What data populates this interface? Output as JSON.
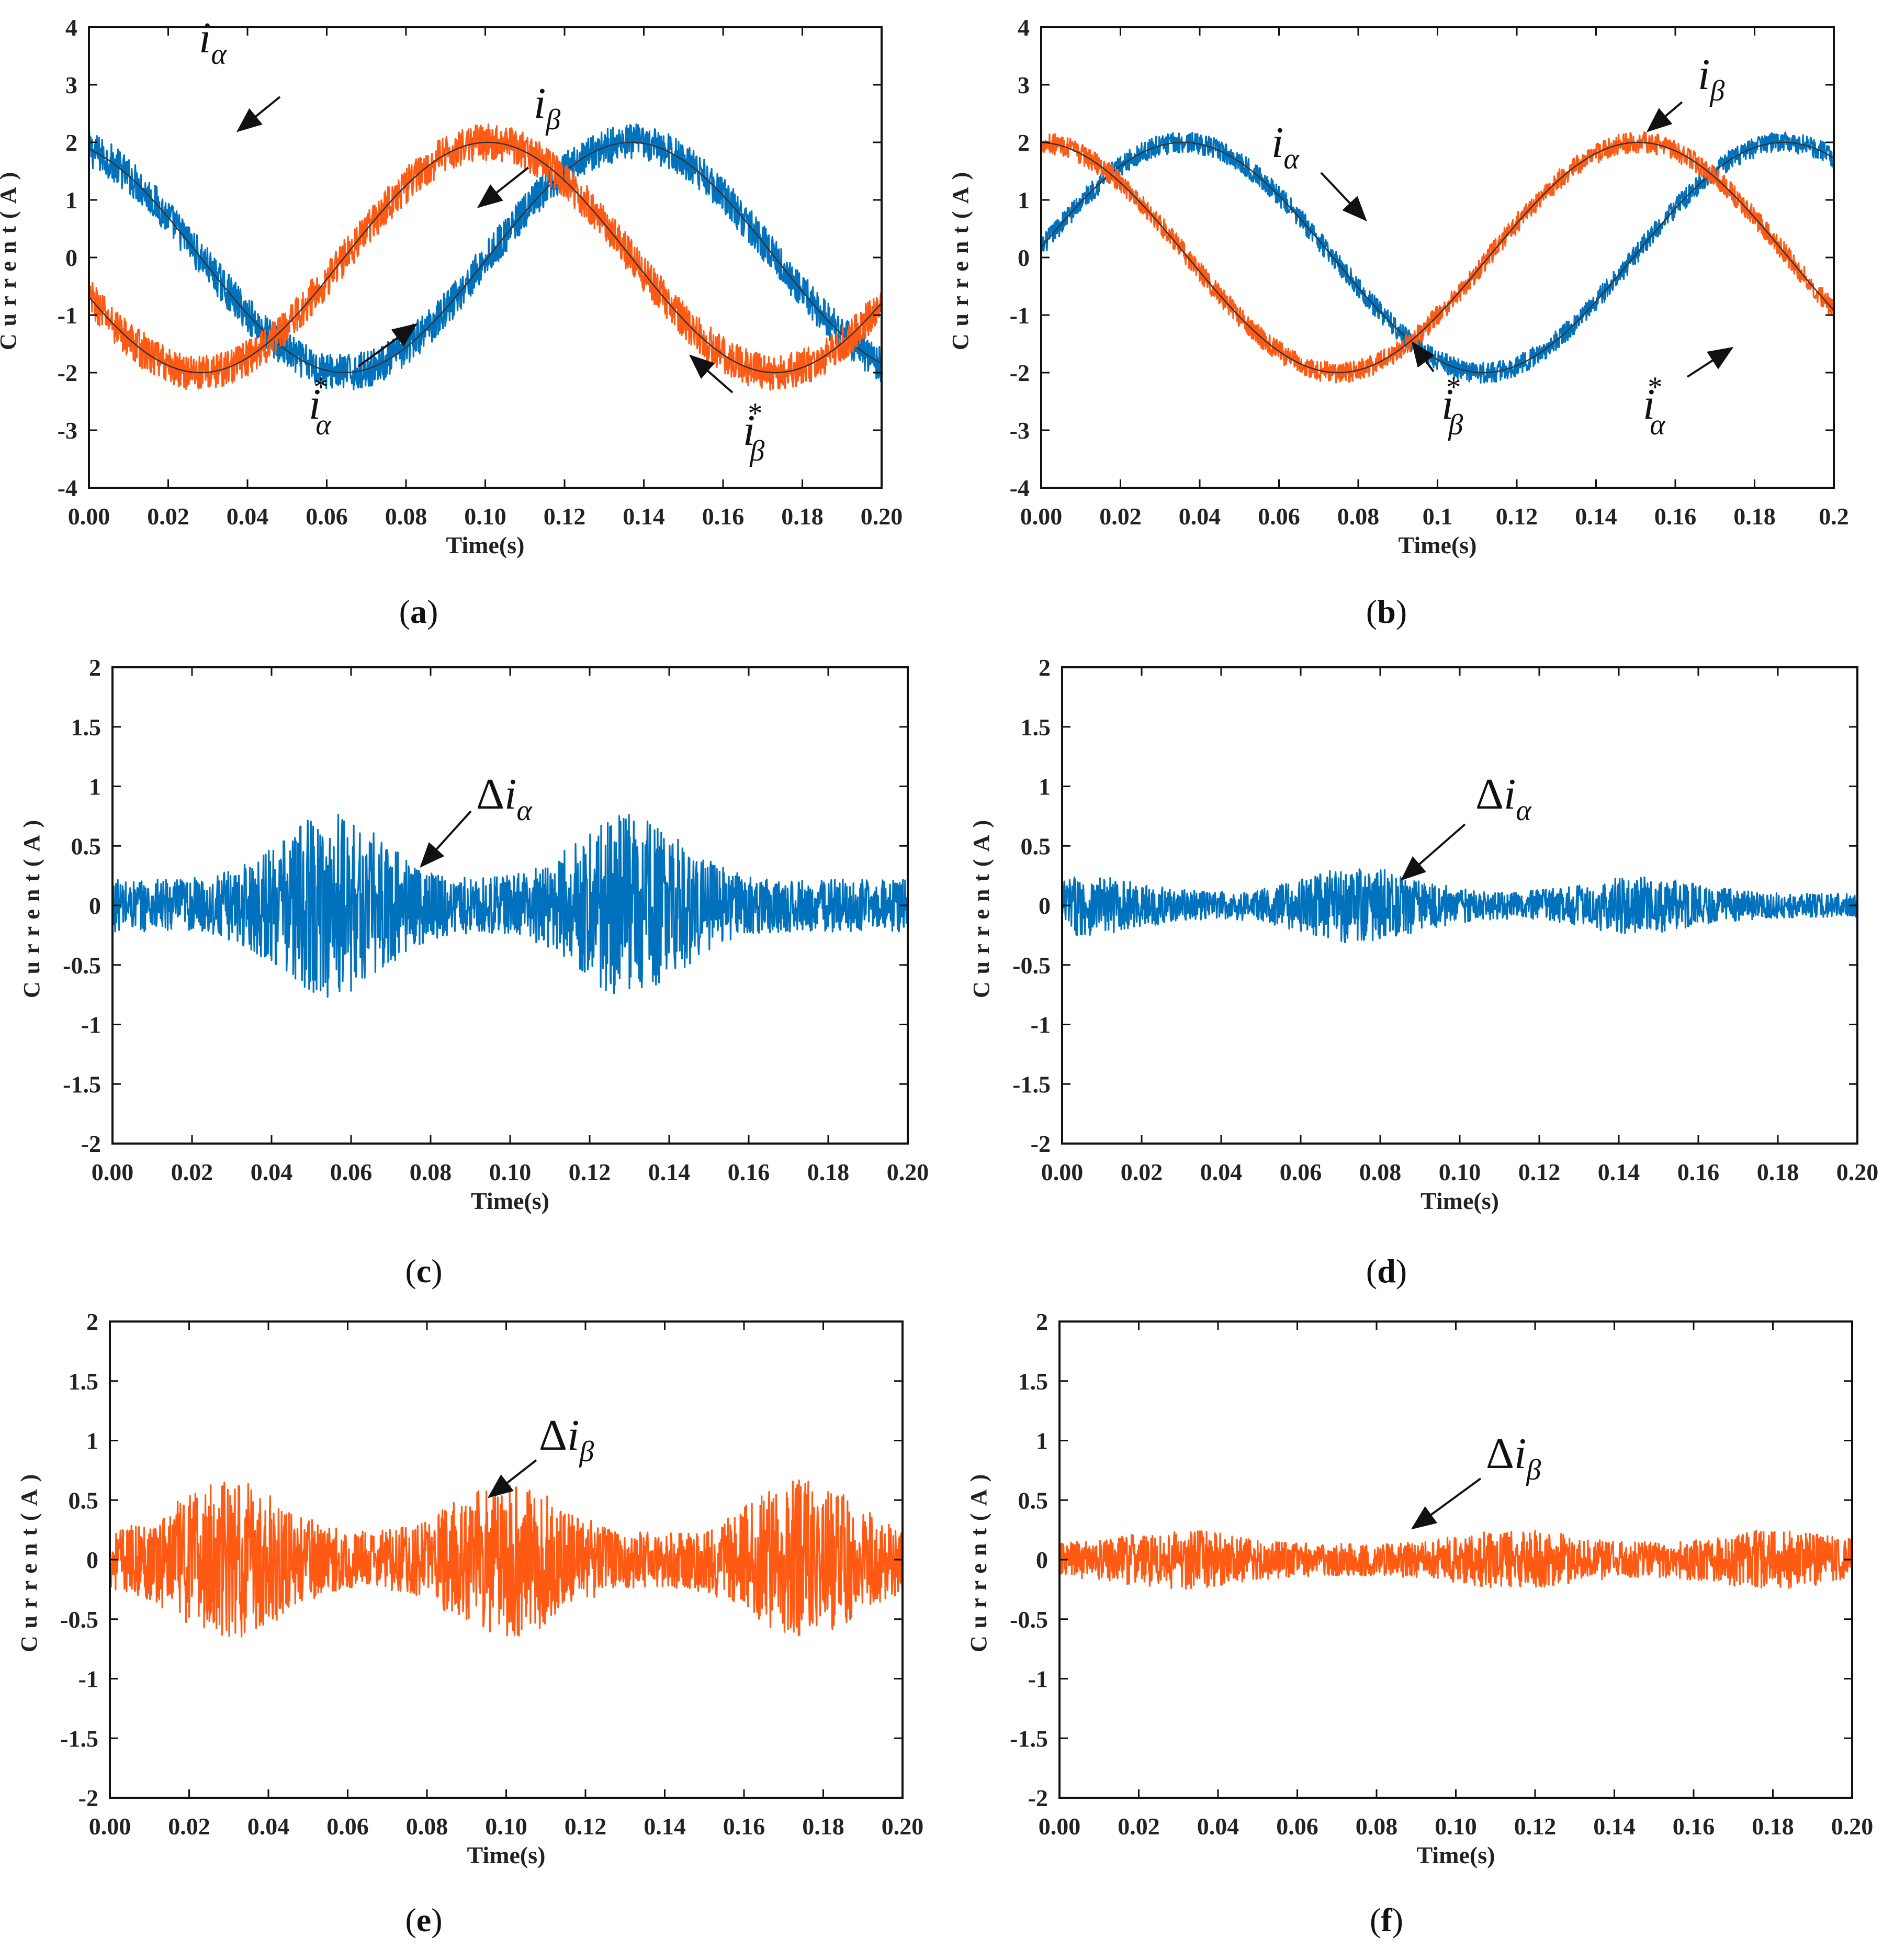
{
  "chart_data": [
    {
      "id": "a",
      "type": "line",
      "caption": "a",
      "xlabel": "Time(s)",
      "ylabel": "Current(A)",
      "xlim": [
        0,
        0.2
      ],
      "ylim": [
        -4,
        4
      ],
      "xticks": [
        "0.00",
        "0.02",
        "0.04",
        "0.06",
        "0.08",
        "0.10",
        "0.12",
        "0.14",
        "0.16",
        "0.18",
        "0.20"
      ],
      "yticks": [
        "4",
        "3",
        "2",
        "1",
        "0",
        "-1",
        "-2",
        "-3",
        "-4"
      ],
      "series": [
        {
          "name": "iα",
          "color": "#0072BD",
          "kind": "sine",
          "amplitude": 2,
          "frequency_hz": 6.9,
          "phase_deg": 110,
          "noise": 0.32,
          "reference": true
        },
        {
          "name": "iβ",
          "color": "#FF5A14",
          "kind": "sine",
          "amplitude": 2,
          "frequency_hz": 6.9,
          "phase_deg": 200,
          "noise": 0.32,
          "reference": true
        }
      ],
      "annotations": [
        {
          "base": "i",
          "sub": "α",
          "sup": ""
        },
        {
          "base": "i",
          "sub": "β",
          "sup": ""
        },
        {
          "base": "i",
          "sub": "α",
          "sup": "*"
        },
        {
          "base": "i",
          "sub": "β",
          "sup": "*"
        }
      ]
    },
    {
      "id": "b",
      "type": "line",
      "caption": "b",
      "xlabel": "Time(s)",
      "ylabel": "Current(A)",
      "xlim": [
        0,
        0.2
      ],
      "ylim": [
        -4,
        4
      ],
      "xticks": [
        "0.00",
        "0.02",
        "0.04",
        "0.06",
        "0.08",
        "0.1",
        "0.12",
        "0.14",
        "0.16",
        "0.18",
        "0.2"
      ],
      "yticks": [
        "4",
        "3",
        "2",
        "1",
        "0",
        "-1",
        "-2",
        "-3",
        "-4"
      ],
      "series": [
        {
          "name": "iα",
          "color": "#0072BD",
          "kind": "sine",
          "amplitude": 2,
          "frequency_hz": 6.6,
          "phase_deg": 5,
          "noise": 0.18,
          "reference": true
        },
        {
          "name": "iβ",
          "color": "#FF5A14",
          "kind": "sine",
          "amplitude": 2,
          "frequency_hz": 6.6,
          "phase_deg": 92,
          "noise": 0.18,
          "reference": true
        }
      ],
      "annotations": [
        {
          "base": "i",
          "sub": "β",
          "sup": ""
        },
        {
          "base": "i",
          "sub": "α",
          "sup": ""
        },
        {
          "base": "i",
          "sub": "β",
          "sup": "*"
        },
        {
          "base": "i",
          "sub": "α",
          "sup": "*"
        }
      ]
    },
    {
      "id": "c",
      "type": "line",
      "caption": "c",
      "xlabel": "Time(s)",
      "ylabel": "Current(A)",
      "xlim": [
        0,
        0.2
      ],
      "ylim": [
        -2,
        2
      ],
      "xticks": [
        "0.00",
        "0.02",
        "0.04",
        "0.06",
        "0.08",
        "0.10",
        "0.12",
        "0.14",
        "0.16",
        "0.18",
        "0.20"
      ],
      "yticks": [
        "2",
        "1.5",
        "1",
        "0.5",
        "0",
        "-0.5",
        "-1",
        "-1.5",
        "-2"
      ],
      "series": [
        {
          "name": "Δiα",
          "color": "#0072BD",
          "kind": "noise",
          "base_amplitude": 0.22,
          "peaks": [
            [
              0.055,
              0.55
            ],
            [
              0.13,
              0.55
            ]
          ],
          "peak_width": 0.018
        }
      ],
      "annotations": [
        {
          "prefix": "Δ",
          "base": "i",
          "sub": "α",
          "sup": ""
        }
      ]
    },
    {
      "id": "d",
      "type": "line",
      "caption": "d",
      "xlabel": "Time(s)",
      "ylabel": "Current(A)",
      "xlim": [
        0,
        0.2
      ],
      "ylim": [
        -2,
        2
      ],
      "xticks": [
        "0.00",
        "0.02",
        "0.04",
        "0.06",
        "0.08",
        "0.10",
        "0.12",
        "0.14",
        "0.16",
        "0.18",
        "0.20"
      ],
      "yticks": [
        "2",
        "1.5",
        "1",
        "0.5",
        "0",
        "-0.5",
        "-1",
        "-1.5",
        "-2"
      ],
      "series": [
        {
          "name": "Δiα",
          "color": "#0072BD",
          "kind": "noise",
          "base_amplitude": 0.1,
          "peaks": [
            [
              0.075,
              0.22
            ],
            [
              0.145,
              0.14
            ],
            [
              0.005,
              0.15
            ]
          ],
          "peak_width": 0.02
        }
      ],
      "annotations": [
        {
          "prefix": "Δ",
          "base": "i",
          "sub": "α",
          "sup": ""
        }
      ]
    },
    {
      "id": "e",
      "type": "line",
      "caption": "e",
      "xlabel": "Time(s)",
      "ylabel": "Current(A)",
      "xlim": [
        0,
        0.2
      ],
      "ylim": [
        -2,
        2
      ],
      "xticks": [
        "0.00",
        "0.02",
        "0.04",
        "0.06",
        "0.08",
        "0.10",
        "0.12",
        "0.14",
        "0.16",
        "0.18",
        "0.20"
      ],
      "yticks": [
        "2",
        "1.5",
        "1",
        "0.5",
        "0",
        "-0.5",
        "-1",
        "-1.5",
        "-2"
      ],
      "series": [
        {
          "name": "Δiβ",
          "color": "#FF5A14",
          "kind": "noise",
          "base_amplitude": 0.22,
          "peaks": [
            [
              0.03,
              0.45
            ],
            [
              0.1,
              0.45
            ],
            [
              0.175,
              0.45
            ]
          ],
          "peak_width": 0.018
        }
      ],
      "annotations": [
        {
          "prefix": "Δ",
          "base": "i",
          "sub": "β",
          "sup": ""
        }
      ]
    },
    {
      "id": "f",
      "type": "line",
      "caption": "f",
      "xlabel": "Time(s)",
      "ylabel": "Current(A)",
      "xlim": [
        0,
        0.2
      ],
      "ylim": [
        -2,
        2
      ],
      "xticks": [
        "0.00",
        "0.02",
        "0.04",
        "0.06",
        "0.08",
        "0.10",
        "0.12",
        "0.14",
        "0.16",
        "0.18",
        "0.20"
      ],
      "yticks": [
        "2",
        "1.5",
        "1",
        "0.5",
        "0",
        "-0.5",
        "-1",
        "-1.5",
        "-2"
      ],
      "series": [
        {
          "name": "Δiβ",
          "color": "#FF5A14",
          "kind": "noise",
          "base_amplitude": 0.13,
          "peaks": [
            [
              0.03,
              0.12
            ],
            [
              0.115,
              0.12
            ],
            [
              0.18,
              0.12
            ]
          ],
          "peak_width": 0.02
        }
      ],
      "annotations": [
        {
          "prefix": "Δ",
          "base": "i",
          "sub": "β",
          "sup": ""
        }
      ]
    }
  ]
}
